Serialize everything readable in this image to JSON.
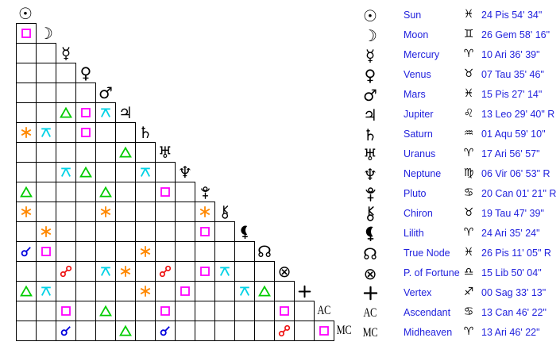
{
  "panel_text_color": "#2222dd",
  "aspects": {
    "co": {
      "name": "conjunction",
      "color": "#0000dd"
    },
    "sx": {
      "name": "sextile",
      "color": "#ff8800"
    },
    "sq": {
      "name": "square",
      "color": "#ff00ff"
    },
    "tr": {
      "name": "trine",
      "color": "#00cc00"
    },
    "op": {
      "name": "opposition",
      "color": "#ee1111"
    },
    "qx": {
      "name": "quincunx",
      "color": "#00d2e6"
    }
  },
  "glyphs": {
    "sun": {
      "char": "☉"
    },
    "moon": {
      "char": "☽"
    },
    "mercury": {
      "char": "☿"
    },
    "venus": {
      "char": "♀"
    },
    "mars": {
      "char": "♂"
    },
    "jupiter": {
      "char": "♃"
    },
    "saturn": {
      "char": "♄"
    },
    "uranus": {
      "char": "♅"
    },
    "neptune": {
      "char": "♆"
    },
    "pluto": {
      "svg": true
    },
    "chiron": {
      "svg": true
    },
    "lilith": {
      "svg": true
    },
    "truenode": {
      "char": "☊"
    },
    "pfortune": {
      "char": "⊗"
    },
    "vertex": {
      "svg": true
    },
    "ac": {
      "text": "AC"
    },
    "mc": {
      "text": "MC"
    }
  },
  "grid": {
    "rows": [
      {
        "planet": "sun",
        "cells": []
      },
      {
        "planet": "moon",
        "cells": [
          "sq"
        ]
      },
      {
        "planet": "mercury",
        "cells": [
          0,
          0
        ]
      },
      {
        "planet": "venus",
        "cells": [
          0,
          0,
          0
        ]
      },
      {
        "planet": "mars",
        "cells": [
          0,
          0,
          0,
          0
        ]
      },
      {
        "planet": "jupiter",
        "cells": [
          0,
          0,
          "tr",
          "sq",
          "qx"
        ]
      },
      {
        "planet": "saturn",
        "cells": [
          "sx",
          "qx",
          0,
          "sq",
          0,
          0
        ]
      },
      {
        "planet": "uranus",
        "cells": [
          0,
          0,
          0,
          0,
          0,
          "tr",
          0
        ]
      },
      {
        "planet": "neptune",
        "cells": [
          0,
          0,
          "qx",
          "tr",
          0,
          0,
          "qx",
          0
        ]
      },
      {
        "planet": "pluto",
        "cells": [
          "tr",
          0,
          0,
          0,
          "tr",
          0,
          0,
          "sq",
          0
        ]
      },
      {
        "planet": "chiron",
        "cells": [
          "sx",
          0,
          0,
          0,
          "sx",
          0,
          0,
          0,
          0,
          "sx"
        ]
      },
      {
        "planet": "lilith",
        "cells": [
          0,
          "sx",
          0,
          0,
          0,
          0,
          0,
          0,
          0,
          "sq",
          0
        ]
      },
      {
        "planet": "truenode",
        "cells": [
          "co",
          "sq",
          0,
          0,
          0,
          0,
          "sx",
          0,
          0,
          0,
          0,
          0
        ]
      },
      {
        "planet": "pfortune",
        "cells": [
          0,
          0,
          "op",
          0,
          "qx",
          "sx",
          0,
          "op",
          0,
          "sq",
          "qx",
          0,
          0
        ]
      },
      {
        "planet": "vertex",
        "cells": [
          "tr",
          "qx",
          0,
          0,
          0,
          0,
          "sx",
          0,
          "sq",
          0,
          0,
          "qx",
          "tr",
          0
        ]
      },
      {
        "planet": "ac",
        "cells": [
          0,
          0,
          "sq",
          0,
          "tr",
          0,
          0,
          "sq",
          0,
          0,
          0,
          0,
          0,
          "sq",
          0
        ]
      },
      {
        "planet": "mc",
        "cells": [
          0,
          0,
          "co",
          0,
          0,
          "tr",
          0,
          "co",
          0,
          0,
          0,
          0,
          0,
          "op",
          0,
          "sq"
        ]
      }
    ]
  },
  "positions": [
    {
      "id": "sun",
      "name": "Sun",
      "sign_char": "♓",
      "value": "24 Pis 54' 34\""
    },
    {
      "id": "moon",
      "name": "Moon",
      "sign_char": "♊",
      "value": "26 Gem 58' 16\""
    },
    {
      "id": "mercury",
      "name": "Mercury",
      "sign_char": "♈",
      "value": "10 Ari 36' 39\""
    },
    {
      "id": "venus",
      "name": "Venus",
      "sign_char": "♉",
      "value": "07 Tau 35' 46\""
    },
    {
      "id": "mars",
      "name": "Mars",
      "sign_char": "♓",
      "value": "15 Pis 27' 14\""
    },
    {
      "id": "jupiter",
      "name": "Jupiter",
      "sign_char": "♌",
      "value": "13 Leo 29' 40\" R"
    },
    {
      "id": "saturn",
      "name": "Saturn",
      "sign_char": "♒",
      "value": "01 Aqu 59' 10\""
    },
    {
      "id": "uranus",
      "name": "Uranus",
      "sign_char": "♈",
      "value": "17 Ari 56' 57\""
    },
    {
      "id": "neptune",
      "name": "Neptune",
      "sign_char": "♍",
      "value": "06 Vir 06' 53\" R"
    },
    {
      "id": "pluto",
      "name": "Pluto",
      "sign_char": "♋",
      "value": "20 Can 01' 21\" R"
    },
    {
      "id": "chiron",
      "name": "Chiron",
      "sign_char": "♉",
      "value": "19 Tau 47' 39\""
    },
    {
      "id": "lilith",
      "name": "Lilith",
      "sign_char": "♈",
      "value": "24 Ari 35' 24\""
    },
    {
      "id": "truenode",
      "name": "True Node",
      "sign_char": "♓",
      "value": "26 Pis 11' 05\" R"
    },
    {
      "id": "pfortune",
      "name": "P. of Fortune",
      "sign_char": "♎",
      "value": "15 Lib 50' 04\""
    },
    {
      "id": "vertex",
      "name": "Vertex",
      "sign_char": "♐",
      "value": "00 Sag 33' 13\""
    },
    {
      "id": "ac",
      "name": "Ascendant",
      "sign_char": "♋",
      "value": "13 Can 46' 22\""
    },
    {
      "id": "mc",
      "name": "Midheaven",
      "sign_char": "♈",
      "value": "13 Ari 46' 22\""
    }
  ]
}
